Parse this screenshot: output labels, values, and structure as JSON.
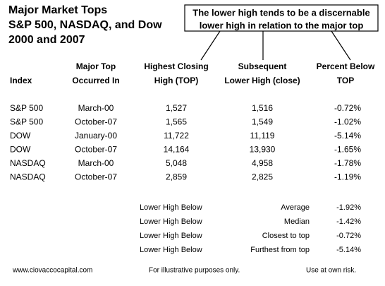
{
  "header": {
    "title_lines": [
      "Major Market Tops",
      "S&P 500, NASDAQ, and Dow",
      "2000 and 2007"
    ]
  },
  "callout": {
    "lines": [
      "The lower high tends to be a discernable",
      "lower high in relation to the major top"
    ]
  },
  "table": {
    "columns": [
      [
        "Index"
      ],
      [
        "Major Top",
        "Occurred In"
      ],
      [
        "Highest Closing",
        "High (TOP)"
      ],
      [
        "Subsequent",
        "Lower High (close)"
      ],
      [
        "Percent Below",
        "TOP"
      ]
    ],
    "rows": [
      [
        "S&P 500",
        "March-00",
        "1,527",
        "1,516",
        "-0.72%"
      ],
      [
        "S&P 500",
        "October-07",
        "1,565",
        "1,549",
        "-1.02%"
      ],
      [
        "DOW",
        "January-00",
        "11,722",
        "11,119",
        "-5.14%"
      ],
      [
        "DOW",
        "October-07",
        "14,164",
        "13,930",
        "-1.65%"
      ],
      [
        "NASDAQ",
        "March-00",
        "5,048",
        "4,958",
        "-1.78%"
      ],
      [
        "NASDAQ",
        "October-07",
        "2,859",
        "2,825",
        "-1.19%"
      ]
    ]
  },
  "summary": [
    [
      "Lower High Below",
      "Average",
      "-1.92%"
    ],
    [
      "Lower High Below",
      "Median",
      "-1.42%"
    ],
    [
      "Lower High Below",
      "Closest to top",
      "-0.72%"
    ],
    [
      "Lower High Below",
      "Furthest from top",
      "-5.14%"
    ]
  ],
  "footer": [
    "www.ciovaccocapital.com",
    "For illustrative purposes only.",
    "Use at own risk."
  ]
}
